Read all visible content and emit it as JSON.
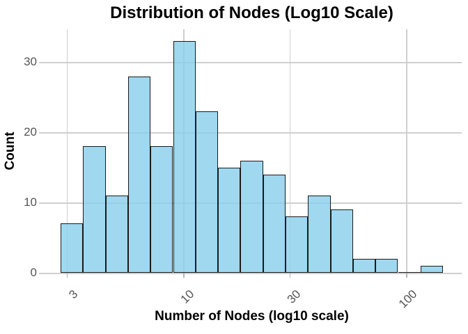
{
  "chart_data": {
    "type": "bar",
    "subtype": "histogram",
    "title": "Distribution of Nodes (Log10 Scale)",
    "xlabel": "Number of Nodes (log10 scale)",
    "ylabel": "Count",
    "x_scale": "log10",
    "xticks": [
      3,
      10,
      30,
      100
    ],
    "yticks": [
      0,
      10,
      20,
      30
    ],
    "ylim": [
      0,
      34.7
    ],
    "xlim_approx": [
      2.45,
      177
    ],
    "grid": "on",
    "legend": "none",
    "bins": 17,
    "bin_edges_approx": [
      2.8,
      3.6,
      4.5,
      5.7,
      7.1,
      9.0,
      11.3,
      14.2,
      18.0,
      22.6,
      28.5,
      35.9,
      45.3,
      57.1,
      71.9,
      90.7,
      114.3,
      144.0
    ],
    "values": [
      7,
      18,
      11,
      28,
      18,
      33,
      23,
      15,
      16,
      14,
      8,
      11,
      9,
      2,
      2,
      0,
      1
    ],
    "colors": {
      "bar_fill": "rgba(135,206,235,0.8)",
      "bar_border": "#1a1a1a",
      "gridline": "#cfcfcf",
      "tick_mark": "#b3b3b3",
      "tick_label": "#555555",
      "text": "#000000",
      "background": "#ffffff"
    }
  }
}
